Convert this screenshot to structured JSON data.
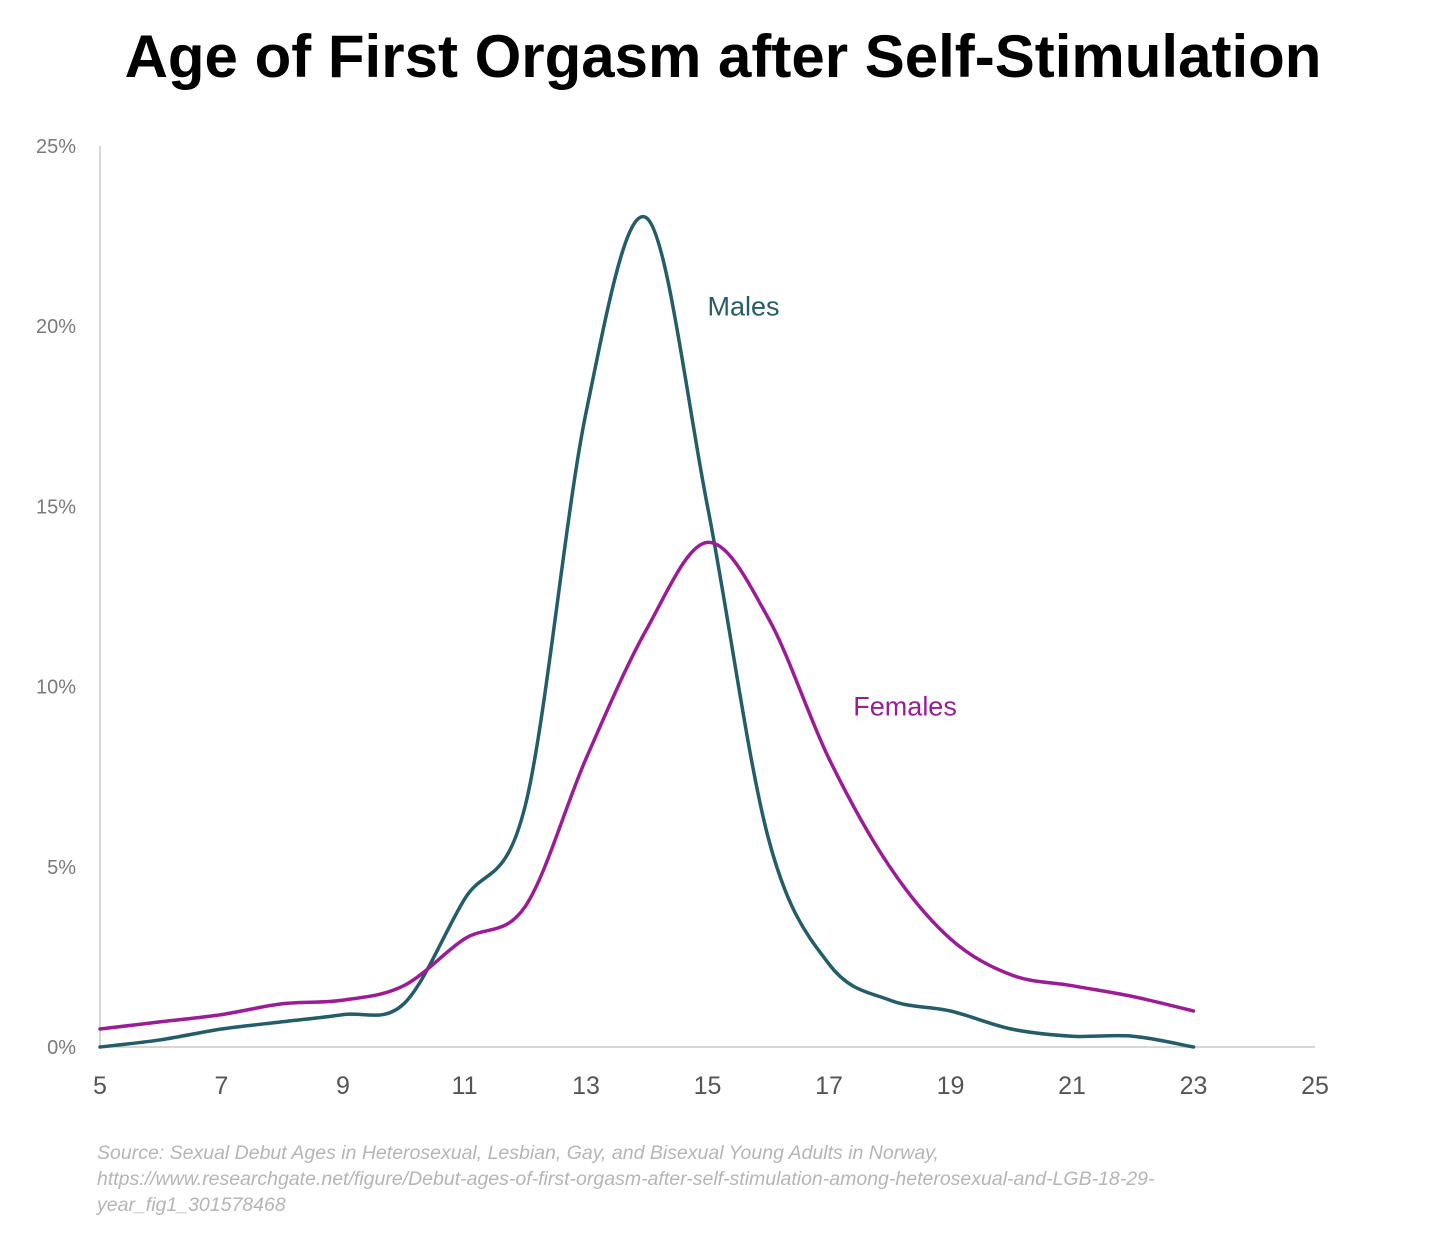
{
  "chart_data": {
    "type": "line",
    "title": "Age of First Orgasm after Self-Stimulation",
    "xlabel": "",
    "ylabel": "",
    "xlim": [
      5,
      25
    ],
    "ylim": [
      0,
      25
    ],
    "x_ticks": [
      "5",
      "7",
      "9",
      "11",
      "13",
      "15",
      "17",
      "19",
      "21",
      "23",
      "25"
    ],
    "y_ticks": [
      "0%",
      "5%",
      "10%",
      "15%",
      "20%",
      "25%"
    ],
    "grid": false,
    "legend": "inline labels",
    "series": [
      {
        "name": "Males",
        "color": "#235d69",
        "x": [
          5,
          6,
          7,
          8,
          9,
          10,
          11,
          12,
          13,
          14,
          15,
          16,
          17,
          18,
          19,
          20,
          21,
          22,
          23
        ],
        "y": [
          0,
          0.2,
          0.5,
          0.7,
          0.9,
          1.2,
          4.1,
          6.7,
          17.6,
          23,
          15,
          5.8,
          2.3,
          1.3,
          1.0,
          0.5,
          0.3,
          0.3,
          0
        ]
      },
      {
        "name": "Females",
        "color": "#9c1c96",
        "x": [
          5,
          6,
          7,
          8,
          9,
          10,
          11,
          12,
          13,
          14,
          15,
          16,
          17,
          18,
          19,
          20,
          21,
          22,
          23
        ],
        "y": [
          0.5,
          0.7,
          0.9,
          1.2,
          1.3,
          1.7,
          3.0,
          3.9,
          8.0,
          11.6,
          14.0,
          11.9,
          8.0,
          5.0,
          3.0,
          2.0,
          1.7,
          1.4,
          1.0
        ]
      }
    ]
  },
  "source": {
    "line1": "Source:  Sexual Debut Ages in Heterosexual, Lesbian, Gay, and Bisexual Young Adults in Norway,",
    "line2": "https://www.researchgate.net/figure/Debut-ages-of-first-orgasm-after-self-stimulation-among-heterosexual-and-LGB-18-29-",
    "line3": "year_fig1_301578468"
  }
}
